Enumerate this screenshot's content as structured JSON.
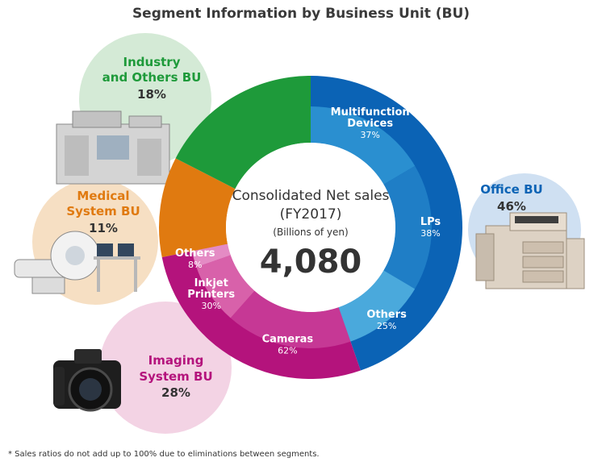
{
  "title": "Segment Information by Business Unit (BU)",
  "footnote": "*  Sales ratios do not add up to 100% due to eliminations between segments.",
  "center": {
    "line1": "Consolidated Net sales",
    "line2": "(FY2017)",
    "unit": "(Billions of yen)",
    "total": "4,080"
  },
  "business_units": [
    {
      "name_line1": "Office BU",
      "name_line2": "",
      "pct": "46%",
      "color": "#0b63b5",
      "bubble": "#cfe0f2"
    },
    {
      "name_line1": "Imaging",
      "name_line2": "System BU",
      "pct": "28%",
      "color": "#b4137c",
      "bubble": "#f3d3e4"
    },
    {
      "name_line1": "Medical",
      "name_line2": "System BU",
      "pct": "11%",
      "color": "#e07a10",
      "bubble": "#f6dfc3"
    },
    {
      "name_line1": "Industry",
      "name_line2": "and Others BU",
      "pct": "18%",
      "color": "#1e9a3a",
      "bubble": "#d4ead6"
    }
  ],
  "chart_data": {
    "type": "pie",
    "title": "Segment Information by Business Unit (BU)",
    "center_label": "Consolidated Net sales (FY2017)",
    "unit": "Billions of yen",
    "total": 4080,
    "outer_ring": [
      {
        "label": "Office BU",
        "value": 46,
        "color": "#0b63b5"
      },
      {
        "label": "Imaging System BU",
        "value": 28,
        "color": "#b4137c"
      },
      {
        "label": "Medical System BU",
        "value": 11,
        "color": "#e07a10"
      },
      {
        "label": "Industry and Others BU",
        "value": 18,
        "color": "#1e9a3a"
      }
    ],
    "inner_ring": [
      {
        "parent": "Office BU",
        "label_line1": "Multifunction",
        "label_line2": "Devices",
        "value": 37,
        "color": "#2a8fd0"
      },
      {
        "parent": "Office BU",
        "label_line1": "LPs",
        "label_line2": "",
        "value": 38,
        "color": "#1f7ec6"
      },
      {
        "parent": "Office BU",
        "label_line1": "Others",
        "label_line2": "",
        "value": 25,
        "color": "#4aa9dc"
      },
      {
        "parent": "Imaging System BU",
        "label_line1": "Cameras",
        "label_line2": "",
        "value": 62,
        "color": "#c63895"
      },
      {
        "parent": "Imaging System BU",
        "label_line1": "Inkjet",
        "label_line2": "Printers",
        "value": 30,
        "color": "#d861aa"
      },
      {
        "parent": "Imaging System BU",
        "label_line1": "Others",
        "label_line2": "",
        "value": 8,
        "color": "#e48bc4"
      }
    ],
    "inner_pct_labels": [
      "37%",
      "38%",
      "25%",
      "62%",
      "30%",
      "8%"
    ],
    "footnote": "Sales ratios do not add up to 100% due to eliminations between segments."
  }
}
